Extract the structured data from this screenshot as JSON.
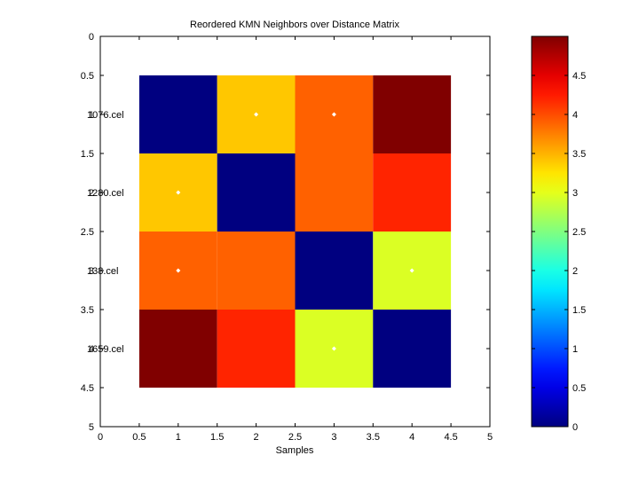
{
  "chart_data": {
    "type": "heatmap",
    "title": "Reordered KMN Neighbors over Distance Matrix",
    "xlabel": "Samples",
    "ylabel": "",
    "xlim": [
      0,
      5
    ],
    "ylim": [
      0,
      5
    ],
    "x_ticks": [
      "0",
      "0.5",
      "1",
      "1.5",
      "2",
      "2.5",
      "3",
      "3.5",
      "4",
      "4.5",
      "5"
    ],
    "y_ticks": [
      "0",
      "0.5",
      "1",
      "1.5",
      "2",
      "2.5",
      "3",
      "3.5",
      "4",
      "4.5",
      "5"
    ],
    "row_labels": [
      "1076.cel",
      "1280.cel",
      "138.cel",
      "1659.cel"
    ],
    "row_label_overlap": [
      "1",
      "2",
      "3",
      "4"
    ],
    "values": [
      [
        0.0,
        3.4,
        3.9,
        5.0
      ],
      [
        3.4,
        0.0,
        3.9,
        4.2
      ],
      [
        3.9,
        3.9,
        0.0,
        2.95
      ],
      [
        5.0,
        4.2,
        2.95,
        0.0
      ]
    ],
    "neighbor_markers": [
      [
        1,
        2
      ],
      [
        1,
        3
      ],
      [
        2,
        1
      ],
      [
        3,
        1
      ],
      [
        3,
        4
      ],
      [
        4,
        3
      ]
    ],
    "colorbar": {
      "min": 0,
      "max": 5,
      "ticks": [
        "0",
        "0.5",
        "1",
        "1.5",
        "2",
        "2.5",
        "3",
        "3.5",
        "4",
        "4.5"
      ],
      "colormap": "jet"
    },
    "grid": false
  }
}
